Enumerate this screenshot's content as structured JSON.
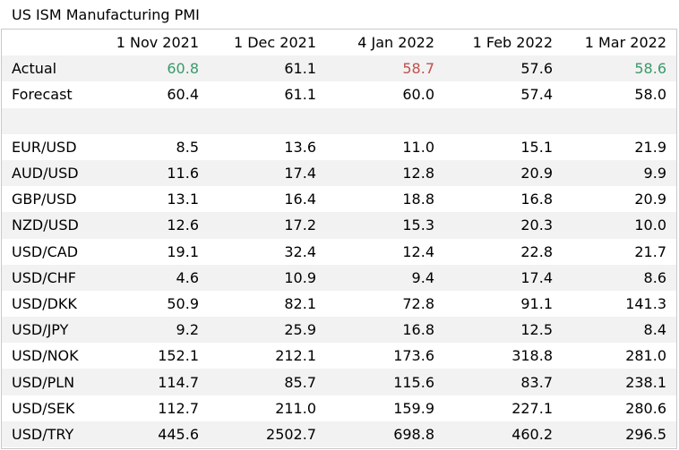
{
  "title": "US ISM Manufacturing PMI",
  "columns": [
    "1 Nov 2021",
    "1 Dec 2021",
    "4 Jan 2022",
    "1 Feb 2022",
    "1 Mar 2022"
  ],
  "colors": {
    "green": "#3a9a6b",
    "red": "#c0504d",
    "shade": "#f2f2f2"
  },
  "rows": [
    {
      "label": "Actual",
      "values": [
        "60.8",
        "61.1",
        "58.7",
        "57.6",
        "58.6"
      ],
      "colors": [
        "green",
        "",
        "red",
        "",
        "green"
      ]
    },
    {
      "label": "Forecast",
      "values": [
        "60.4",
        "61.1",
        "60.0",
        "57.4",
        "58.0"
      ]
    },
    {
      "label": "",
      "values": [
        "",
        "",
        "",
        "",
        ""
      ]
    },
    {
      "label": "EUR/USD",
      "values": [
        "8.5",
        "13.6",
        "11.0",
        "15.1",
        "21.9"
      ]
    },
    {
      "label": "AUD/USD",
      "values": [
        "11.6",
        "17.4",
        "12.8",
        "20.9",
        "9.9"
      ]
    },
    {
      "label": "GBP/USD",
      "values": [
        "13.1",
        "16.4",
        "18.8",
        "16.8",
        "20.9"
      ]
    },
    {
      "label": "NZD/USD",
      "values": [
        "12.6",
        "17.2",
        "15.3",
        "20.3",
        "10.0"
      ]
    },
    {
      "label": "USD/CAD",
      "values": [
        "19.1",
        "32.4",
        "12.4",
        "22.8",
        "21.7"
      ]
    },
    {
      "label": "USD/CHF",
      "values": [
        "4.6",
        "10.9",
        "9.4",
        "17.4",
        "8.6"
      ]
    },
    {
      "label": "USD/DKK",
      "values": [
        "50.9",
        "82.1",
        "72.8",
        "91.1",
        "141.3"
      ]
    },
    {
      "label": "USD/JPY",
      "values": [
        "9.2",
        "25.9",
        "16.8",
        "12.5",
        "8.4"
      ]
    },
    {
      "label": "USD/NOK",
      "values": [
        "152.1",
        "212.1",
        "173.6",
        "318.8",
        "281.0"
      ]
    },
    {
      "label": "USD/PLN",
      "values": [
        "114.7",
        "85.7",
        "115.6",
        "83.7",
        "238.1"
      ]
    },
    {
      "label": "USD/SEK",
      "values": [
        "112.7",
        "211.0",
        "159.9",
        "227.1",
        "280.6"
      ]
    },
    {
      "label": "USD/TRY",
      "values": [
        "445.6",
        "2502.7",
        "698.8",
        "460.2",
        "296.5"
      ]
    }
  ]
}
